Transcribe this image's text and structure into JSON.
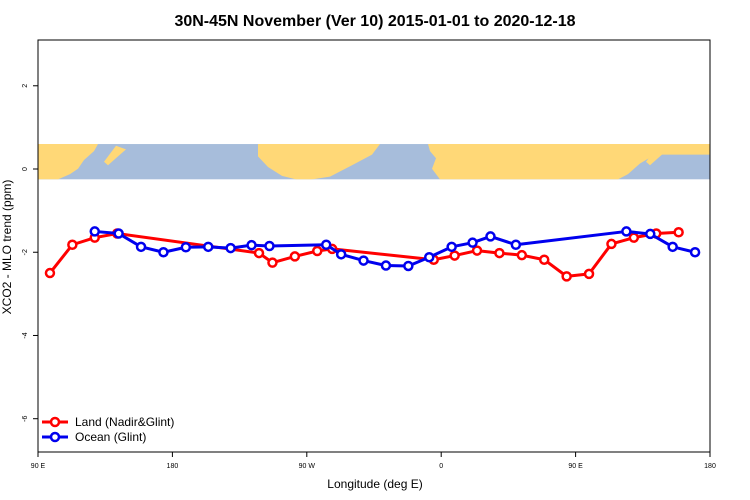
{
  "chart_data": {
    "type": "line",
    "title": "30N-45N November (Ver 10)   2015-01-01 to 2020-12-18",
    "xlabel": "Longitude (deg E)",
    "ylabel": "XCO2 - MLO trend (ppm)",
    "x_ticks": [
      {
        "value": 90,
        "label": "90 E"
      },
      {
        "value": 180,
        "label": "180"
      },
      {
        "value": 270,
        "label": "90 W"
      },
      {
        "value": 360,
        "label": "0"
      },
      {
        "value": 450,
        "label": "90 E"
      },
      {
        "value": 540,
        "label": "180"
      }
    ],
    "y_ticks": [
      {
        "value": 2,
        "label": "2"
      },
      {
        "value": 0,
        "label": "0"
      },
      {
        "value": -2,
        "label": "-2"
      },
      {
        "value": -4,
        "label": "-4"
      },
      {
        "value": -6,
        "label": "-6"
      }
    ],
    "xlim": [
      90,
      540
    ],
    "ylim": [
      -6.8,
      3.1
    ],
    "map_band": {
      "ymin": -0.25,
      "ymax": 0.6,
      "ocean_color": "#a7bddb",
      "land_color": "#ffd877"
    },
    "series": [
      {
        "name": "Land (Nadir&Glint)",
        "color": "#ff0000",
        "x": [
          98,
          113,
          128,
          143,
          238,
          247,
          262,
          277,
          287,
          355,
          369,
          384,
          399,
          414,
          429,
          444,
          459,
          474,
          489,
          504,
          519
        ],
        "y": [
          -2.5,
          -1.82,
          -1.65,
          -1.55,
          -2.02,
          -2.25,
          -2.1,
          -1.97,
          -1.92,
          -2.18,
          -2.08,
          -1.96,
          -2.02,
          -2.07,
          -2.18,
          -2.58,
          -2.52,
          -1.8,
          -1.65,
          -1.55,
          -1.52
        ]
      },
      {
        "name": "Ocean (Glint)",
        "color": "#0000ee",
        "x": [
          128,
          144,
          159,
          174,
          189,
          204,
          219,
          233,
          245,
          283,
          293,
          308,
          323,
          338,
          352,
          367,
          381,
          393,
          410,
          484,
          500,
          515,
          530
        ],
        "y": [
          -1.5,
          -1.55,
          -1.87,
          -2.0,
          -1.88,
          -1.87,
          -1.9,
          -1.83,
          -1.85,
          -1.82,
          -2.05,
          -2.2,
          -2.32,
          -2.33,
          -2.12,
          -1.87,
          -1.77,
          -1.62,
          -1.82,
          -1.5,
          -1.56,
          -1.87,
          -2.0
        ]
      }
    ],
    "legend_position": "bottom-left",
    "grid": false
  }
}
